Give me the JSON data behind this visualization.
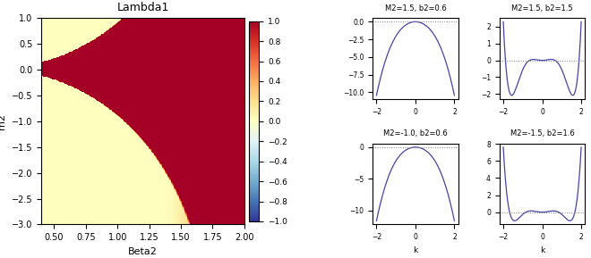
{
  "left_panel": {
    "title": "Lambda1",
    "xlabel": "Beta2",
    "ylabel": "m2",
    "beta2_range": [
      0.4,
      2.0
    ],
    "m2_range": [
      -3.0,
      1.0
    ],
    "colormap": "RdYlBu_r",
    "clim": [
      -1.0,
      1.0
    ],
    "colorbar_ticks": [
      1.0,
      0.8,
      0.6,
      0.4,
      0.2,
      0.0,
      -0.2,
      -0.4,
      -0.6,
      -0.8,
      -1.0
    ]
  },
  "right_panels": [
    {
      "M2": 1.5,
      "b2": 0.6,
      "title": "M2=1.5, b2=0.6"
    },
    {
      "M2": 1.5,
      "b2": 1.5,
      "title": "M2=1.5, b2=1.5"
    },
    {
      "M2": -1.0,
      "b2": 0.6,
      "title": "M2=-1.0, b2=0.6"
    },
    {
      "M2": -1.5,
      "b2": 1.6,
      "title": "M2=-1.5, b2=1.6"
    }
  ],
  "line_color": "#4444aa",
  "grid_nb2": 300,
  "grid_nm2": 300,
  "k_points": 400
}
